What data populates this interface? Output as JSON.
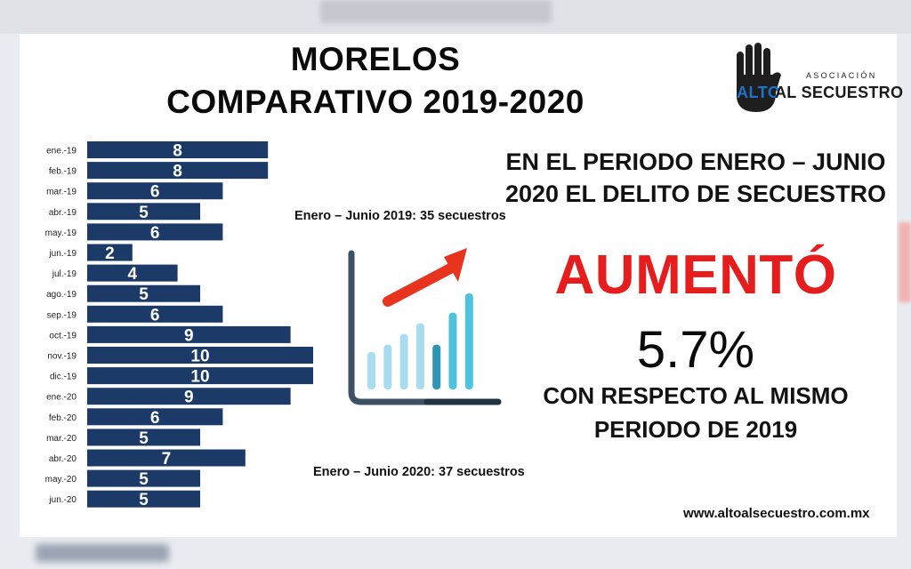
{
  "title": {
    "line1": "MORELOS",
    "line2": "COMPARATIVO 2019-2020"
  },
  "logo": {
    "association": "ASOCIACIÓN",
    "alto": "ALTO",
    "rest": "AL SECUESTRO"
  },
  "notes": {
    "first_half_2019": "Enero – Junio 2019: 35 secuestros",
    "first_half_2020": "Enero – Junio 2020: 37 secuestros"
  },
  "summary": {
    "line1": "EN EL PERIODO ENERO – JUNIO",
    "line2": "2020 EL DELITO DE SECUESTRO",
    "verb": "AUMENTÓ",
    "percent": "5.7%",
    "comparison_line1": "CON RESPECTO AL MISMO",
    "comparison_line2": "PERIODO DE  2019"
  },
  "website": "www.altoalsecuestro.com.mx",
  "colors": {
    "bar": "#1b3a68",
    "accent_red": "#e51d1d",
    "arrow": "#e8331f",
    "icon_bars": [
      "#a9dcee",
      "#a9dcee",
      "#a9dcee",
      "#a9dcee",
      "#2f95b4",
      "#4fc3de",
      "#4fc3de"
    ],
    "axis_light": "#3d5164",
    "axis_dark": "#223340"
  },
  "chart_data": {
    "type": "bar",
    "orientation": "horizontal",
    "categories": [
      "ene.-19",
      "feb.-19",
      "mar.-19",
      "abr.-19",
      "may.-19",
      "jun.-19",
      "jul.-19",
      "ago.-19",
      "sep.-19",
      "oct.-19",
      "nov.-19",
      "dic.-19",
      "ene.-20",
      "feb.-20",
      "mar.-20",
      "abr.-20",
      "may.-20",
      "jun.-20"
    ],
    "values": [
      8,
      8,
      6,
      5,
      6,
      2,
      4,
      5,
      6,
      9,
      10,
      10,
      9,
      6,
      5,
      7,
      5,
      5
    ],
    "xlim": [
      0,
      10
    ],
    "data_labels": true,
    "grid": false,
    "legend": false
  },
  "icon": {
    "bar_levels": [
      0.35,
      0.42,
      0.52,
      0.62,
      0.42,
      0.72,
      0.9
    ]
  }
}
